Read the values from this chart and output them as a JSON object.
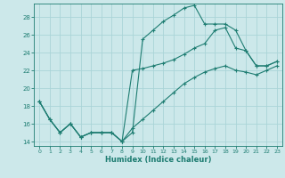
{
  "xlabel": "Humidex (Indice chaleur)",
  "bg_color": "#cce8ea",
  "grid_color": "#aad4d8",
  "line_color": "#1e7d72",
  "xlim": [
    -0.5,
    23.5
  ],
  "ylim": [
    13.5,
    29.5
  ],
  "xticks": [
    0,
    1,
    2,
    3,
    4,
    5,
    6,
    7,
    8,
    9,
    10,
    11,
    12,
    13,
    14,
    15,
    16,
    17,
    18,
    19,
    20,
    21,
    22,
    23
  ],
  "yticks": [
    14,
    16,
    18,
    20,
    22,
    24,
    26,
    28
  ],
  "line1_x": [
    0,
    1,
    2,
    3,
    4,
    5,
    6,
    7,
    8,
    9,
    10,
    11,
    12,
    13,
    14,
    15,
    16,
    17,
    18,
    19,
    20,
    21,
    22,
    23
  ],
  "line1_y": [
    18.5,
    16.5,
    15.0,
    16.0,
    14.5,
    15.0,
    15.0,
    15.0,
    14.0,
    15.0,
    25.5,
    26.5,
    27.5,
    28.2,
    29.0,
    29.3,
    27.2,
    27.2,
    27.2,
    26.5,
    24.2,
    22.5,
    22.5,
    23.0
  ],
  "line2_x": [
    0,
    1,
    2,
    3,
    4,
    5,
    6,
    7,
    8,
    9,
    10,
    11,
    12,
    13,
    14,
    15,
    16,
    17,
    18,
    19,
    20,
    21,
    22,
    23
  ],
  "line2_y": [
    18.5,
    16.5,
    15.0,
    16.0,
    14.5,
    15.0,
    15.0,
    15.0,
    14.0,
    22.0,
    22.2,
    22.5,
    22.8,
    23.2,
    23.8,
    24.5,
    25.0,
    26.5,
    26.8,
    24.5,
    24.2,
    22.5,
    22.5,
    23.0
  ],
  "line3_x": [
    0,
    1,
    2,
    3,
    4,
    5,
    6,
    7,
    8,
    9,
    10,
    11,
    12,
    13,
    14,
    15,
    16,
    17,
    18,
    19,
    20,
    21,
    22,
    23
  ],
  "line3_y": [
    18.5,
    16.5,
    15.0,
    16.0,
    14.5,
    15.0,
    15.0,
    15.0,
    14.0,
    15.5,
    16.5,
    17.5,
    18.5,
    19.5,
    20.5,
    21.2,
    21.8,
    22.2,
    22.5,
    22.0,
    21.8,
    21.5,
    22.0,
    22.5
  ]
}
